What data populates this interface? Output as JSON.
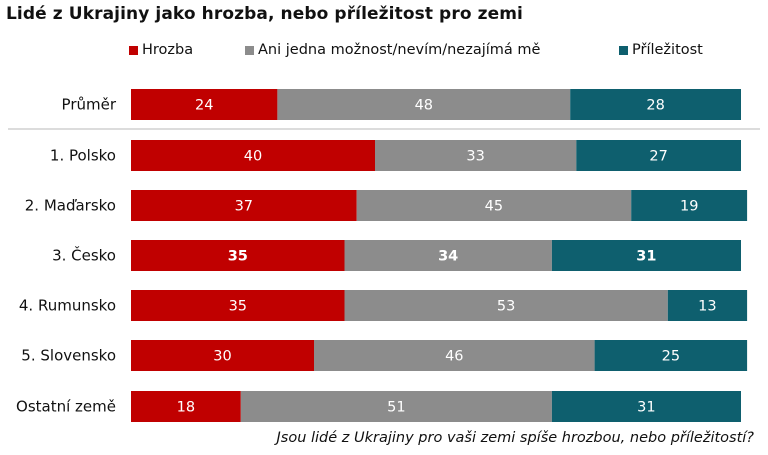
{
  "chart_data": {
    "type": "bar",
    "orientation": "horizontal-stacked-100",
    "title": "Lidé z Ukrajiny jako hrozba, nebo příležitost pro zemi",
    "footnote": "Jsou lidé z Ukrajiny pro vaši zemi spíše hrozbou, nebo příležitostí?",
    "categories": [
      "Průměr",
      "1. Polsko",
      "2. Maďarsko",
      "3. Česko",
      "4. Rumunsko",
      "5. Slovensko",
      "Ostatní země"
    ],
    "bold_category": "3. Česko",
    "series": [
      {
        "name": "Hrozba",
        "color": "#c00000",
        "values": [
          24,
          40,
          37,
          35,
          35,
          30,
          18
        ]
      },
      {
        "name": "Ani jedna možnost/nevím/nezajímá mě",
        "color": "#8c8c8c",
        "values": [
          48,
          33,
          45,
          34,
          53,
          46,
          51
        ]
      },
      {
        "name": "Příležitost",
        "color": "#0e5f6e",
        "values": [
          28,
          27,
          19,
          31,
          13,
          25,
          31
        ]
      }
    ],
    "xlim": [
      0,
      100
    ],
    "legend_position": "top",
    "separator_after_first": true
  }
}
